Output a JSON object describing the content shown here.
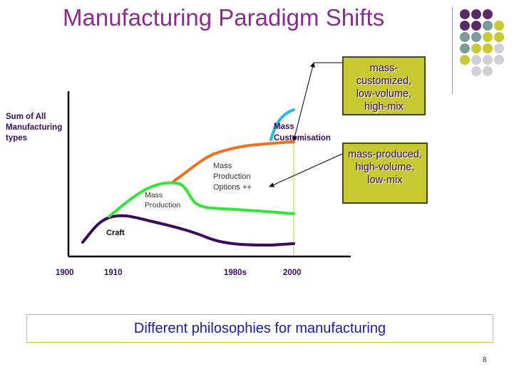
{
  "title": "Manufacturing Paradigm Shifts",
  "y_axis_label": "Sum of All\nManufacturing\ntypes",
  "x_ticks": [
    "1900",
    "1910",
    "1980s",
    "2000"
  ],
  "curve_labels": {
    "craft": "Craft",
    "mass_production": "Mass\nProduction",
    "mass_production_options": "Mass\nProduction\nOptions ++",
    "mass_customisation": "Mass\nCustomisation"
  },
  "callouts": {
    "top": "mass-customized, low-volume, high-mix",
    "bottom": "mass-produced, high-volume, low-mix"
  },
  "caption": "Different philosophies for manufacturing",
  "page_number": "8",
  "colors": {
    "title": "#8b2b8f",
    "craft": "#3b0a5e",
    "mass_production": "#33e633",
    "mass_production_options": "#f07020",
    "mass_customisation": "#22b8ee",
    "callout_fill": "#c8c832",
    "caption_text": "#1a1aa8",
    "vertical_marker": "#e0d060"
  },
  "decor_dots": [
    [
      "#5a2a6a",
      "#5a2a6a",
      "#5a2a6a",
      null
    ],
    [
      "#5a2a6a",
      "#5a2a6a",
      "#7a9a9a",
      "#c8c832"
    ],
    [
      "#7a9a9a",
      "#7a9a9a",
      "#c8c832",
      "#c8c832"
    ],
    [
      "#7a9a9a",
      "#c8c832",
      "#c8c832",
      "#d0d0d8"
    ],
    [
      "#c8c832",
      "#d0d0d8",
      "#d0d0d8",
      "#d0d0d8"
    ],
    [
      null,
      "#d0d0d8",
      "#d0d0d8",
      null
    ]
  ]
}
